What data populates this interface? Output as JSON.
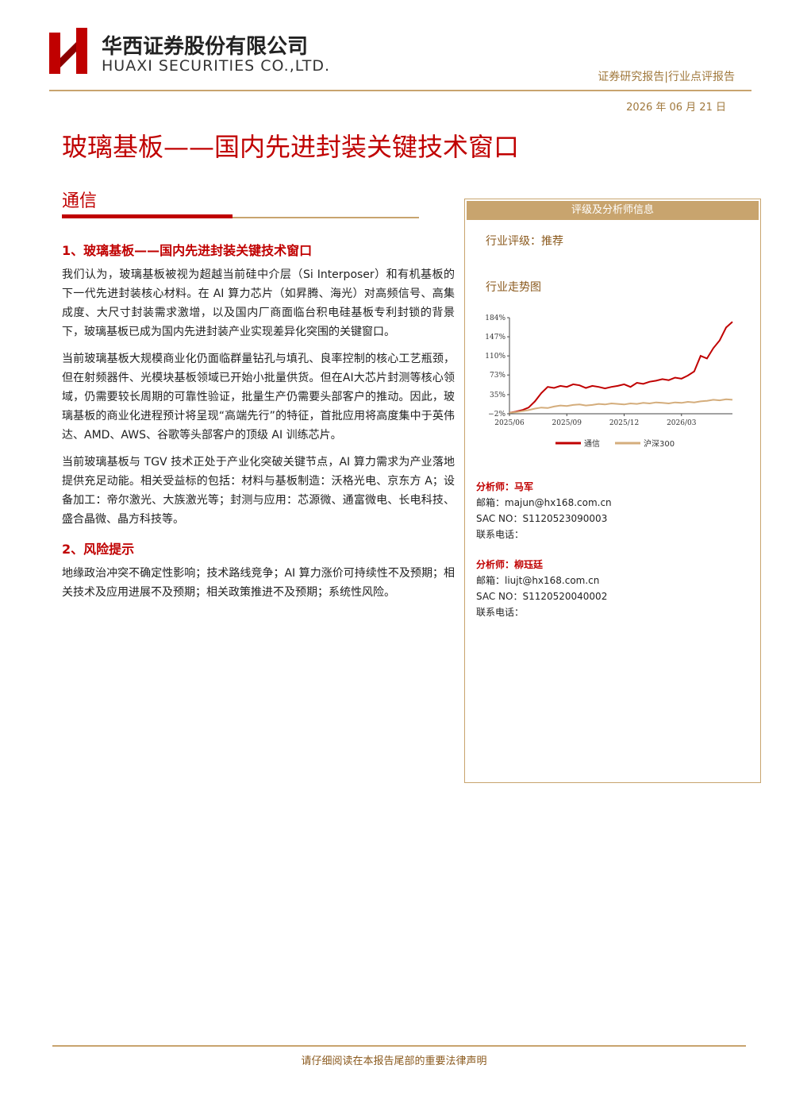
{
  "header": {
    "company_cn": "华西证券股份有限公司",
    "company_en": "HUAXI SECURITIES CO.,LTD.",
    "report_type": "证券研究报告|行业点评报告",
    "date": "2026 年 06 月 21 日"
  },
  "title": "玻璃基板——国内先进封装关键技术窗口",
  "industry": "通信",
  "sections": [
    {
      "heading": "1、玻璃基板——国内先进封装关键技术窗口",
      "paragraphs": [
        "我们认为，玻璃基板被视为超越当前硅中介层（Si Interposer）和有机基板的下一代先进封装核心材料。在 AI 算力芯片（如昇腾、海光）对高频信号、高集成度、大尺寸封装需求激增，以及国内厂商面临台积电硅基板专利封锁的背景下，玻璃基板已成为国内先进封装产业实现差异化突围的关键窗口。",
        "当前玻璃基板大规模商业化仍面临群量钻孔与填孔、良率控制的核心工艺瓶颈，但在射频器件、光模块基板领域已开始小批量供货。但在AI大芯片封测等核心领域，仍需要较长周期的可靠性验证，批量生产仍需要头部客户的推动。因此，玻璃基板的商业化进程预计将呈现“高端先行”的特征，首批应用将高度集中于英伟达、AMD、AWS、谷歌等头部客户的顶级 AI 训练芯片。",
        "当前玻璃基板与 TGV 技术正处于产业化突破关键节点，AI 算力需求为产业落地提供充足动能。相关受益标的包括：材料与基板制造：沃格光电、京东方 A；设备加工：帝尔激光、大族激光等；封测与应用：芯源微、通富微电、长电科技、盛合晶微、晶方科技等。"
      ]
    },
    {
      "heading": "2、风险提示",
      "paragraphs": [
        "地缘政治冲突不确定性影响；技术路线竞争；AI 算力涨价可持续性不及预期；相关技术及应用进展不及预期；相关政策推进不及预期；系统性风险。"
      ]
    }
  ],
  "sidebar": {
    "box_title": "评级及分析师信息",
    "rating": "行业评级：推荐",
    "chart_title": "行业走势图",
    "analysts": [
      {
        "name": "分析师：马军",
        "email": "邮箱：majun@hx168.com.cn",
        "sac": "SAC NO：S1120523090003",
        "phone": "联系电话："
      },
      {
        "name": "分析师：柳珏廷",
        "email": "邮箱：liujt@hx168.com.cn",
        "sac": "SAC NO：S1120520040002",
        "phone": "联系电话："
      }
    ]
  },
  "chart_data": {
    "type": "line",
    "categories": [
      "2025/06",
      null,
      null,
      null,
      null,
      null,
      null,
      null,
      null,
      "2025/09",
      null,
      null,
      null,
      null,
      null,
      null,
      null,
      null,
      "2025/12",
      null,
      null,
      null,
      null,
      null,
      null,
      null,
      null,
      "2026/03",
      null,
      null,
      null,
      null,
      null,
      null,
      null,
      null
    ],
    "series": [
      {
        "name": "通信",
        "color": "#c00000",
        "values": [
          0,
          2,
          5,
          10,
          22,
          38,
          50,
          48,
          52,
          50,
          55,
          53,
          48,
          52,
          50,
          47,
          50,
          52,
          55,
          50,
          58,
          56,
          60,
          62,
          65,
          63,
          68,
          66,
          72,
          80,
          110,
          105,
          125,
          140,
          165,
          176
        ]
      },
      {
        "name": "沪深300",
        "color": "#d4ad7c",
        "values": [
          0,
          1,
          3,
          5,
          8,
          10,
          9,
          12,
          14,
          13,
          15,
          16,
          14,
          15,
          17,
          16,
          18,
          17,
          16,
          18,
          17,
          19,
          18,
          20,
          19,
          18,
          20,
          19,
          21,
          20,
          22,
          23,
          25,
          24,
          26,
          25
        ]
      }
    ],
    "ylim": [
      -2,
      184
    ],
    "yticks": [
      {
        "value": -2,
        "label": "−2%"
      },
      {
        "value": 35,
        "label": "35%"
      },
      {
        "value": 73,
        "label": "73%"
      },
      {
        "value": 110,
        "label": "110%"
      },
      {
        "value": 147,
        "label": "147%"
      },
      {
        "value": 184,
        "label": "184%"
      }
    ],
    "legend": "bottom"
  },
  "footer": "请仔细阅读在本报告尾部的重要法律声明"
}
